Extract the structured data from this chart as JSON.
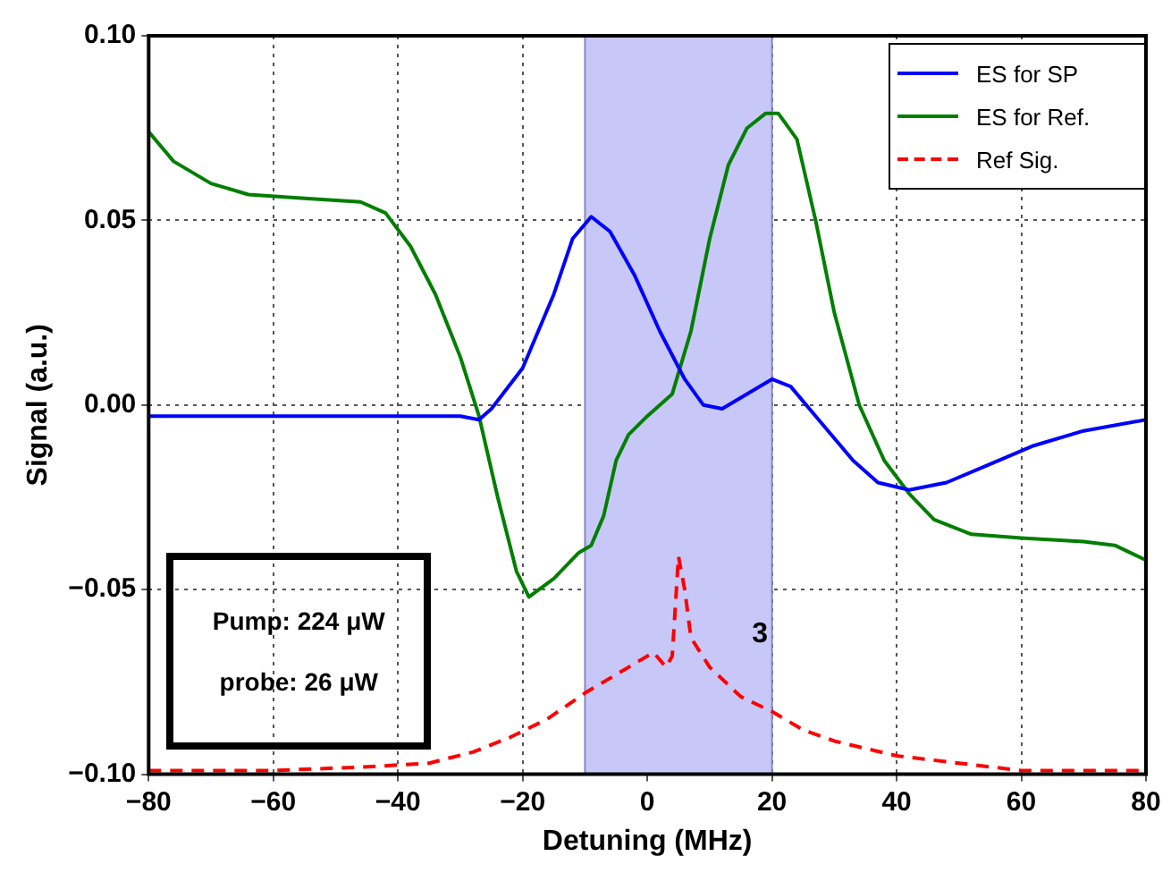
{
  "chart_data": {
    "type": "line",
    "xlabel": "Detuning (MHz)",
    "ylabel": "Signal (a.u.)",
    "xlim": [
      -80,
      80
    ],
    "xticks": [
      {
        "value": -80,
        "label": "−80"
      },
      {
        "value": -60,
        "label": "−60"
      },
      {
        "value": -40,
        "label": "−40"
      },
      {
        "value": -20,
        "label": "−20"
      },
      0,
      20,
      40,
      60,
      80
    ],
    "ylim": [
      -0.1,
      0.1
    ],
    "yticks": [
      {
        "value": -0.1,
        "label": "−0.10"
      },
      {
        "value": -0.05,
        "label": "−0.05"
      },
      {
        "value": 0,
        "label": "0.00"
      },
      {
        "value": 0.05,
        "label": "0.05"
      },
      {
        "value": 0.1,
        "label": "0.10"
      }
    ],
    "grid": true,
    "legend": "top right",
    "marker": "none",
    "bands": [
      {
        "axis": "x",
        "from": -10,
        "to": 20,
        "color": "#c8c8f8"
      }
    ],
    "annotations": [
      "Pump: 224 μW",
      "probe: 26 μW",
      "3"
    ],
    "series": [
      {
        "name": "ES for SP",
        "color": "#0000ff",
        "line_style": "solid",
        "x": [
          -80,
          -60,
          -40,
          -30,
          -27,
          -25,
          -20,
          -15,
          -12,
          -9,
          -6,
          -2,
          2,
          6,
          9,
          12,
          16,
          20,
          23,
          28,
          33,
          37,
          42,
          48,
          55,
          62,
          70,
          80
        ],
        "values": [
          -0.003,
          -0.003,
          -0.003,
          -0.003,
          -0.004,
          -0.001,
          0.01,
          0.03,
          0.045,
          0.051,
          0.047,
          0.035,
          0.02,
          0.007,
          0.0,
          -0.001,
          0.003,
          0.007,
          0.005,
          -0.005,
          -0.015,
          -0.021,
          -0.023,
          -0.021,
          -0.016,
          -0.011,
          -0.007,
          -0.004
        ]
      },
      {
        "name": "ES for Ref.",
        "color": "#007f00",
        "line_style": "solid",
        "x": [
          -80,
          -76,
          -70,
          -64,
          -55,
          -46,
          -42,
          -38,
          -34,
          -30,
          -27,
          -24,
          -21,
          -19,
          -15,
          -11,
          -9,
          -7,
          -5,
          -3,
          0,
          4,
          7,
          10,
          13,
          16,
          19,
          21,
          24,
          27,
          30,
          34,
          38,
          42,
          46,
          52,
          60,
          70,
          75,
          80
        ],
        "values": [
          0.074,
          0.066,
          0.06,
          0.057,
          0.056,
          0.055,
          0.052,
          0.043,
          0.03,
          0.013,
          -0.003,
          -0.025,
          -0.045,
          -0.052,
          -0.047,
          -0.04,
          -0.038,
          -0.03,
          -0.015,
          -0.008,
          -0.003,
          0.003,
          0.02,
          0.045,
          0.065,
          0.075,
          0.079,
          0.079,
          0.072,
          0.05,
          0.025,
          0.0,
          -0.015,
          -0.024,
          -0.031,
          -0.035,
          -0.036,
          -0.037,
          -0.038,
          -0.042
        ]
      },
      {
        "name": "Ref Sig.",
        "color": "#ff0000",
        "line_style": "dashed",
        "x": [
          -80,
          -60,
          -45,
          -35,
          -28,
          -22,
          -16,
          -10,
          -5,
          -1,
          1,
          3,
          4,
          5,
          6,
          7,
          10,
          15,
          20,
          25,
          30,
          40,
          50,
          60,
          70,
          80
        ],
        "values": [
          -0.099,
          -0.099,
          -0.098,
          -0.097,
          -0.094,
          -0.09,
          -0.085,
          -0.078,
          -0.073,
          -0.069,
          -0.067,
          -0.071,
          -0.068,
          -0.041,
          -0.05,
          -0.063,
          -0.071,
          -0.079,
          -0.083,
          -0.088,
          -0.091,
          -0.095,
          -0.097,
          -0.099,
          -0.099,
          -0.099
        ]
      }
    ]
  }
}
